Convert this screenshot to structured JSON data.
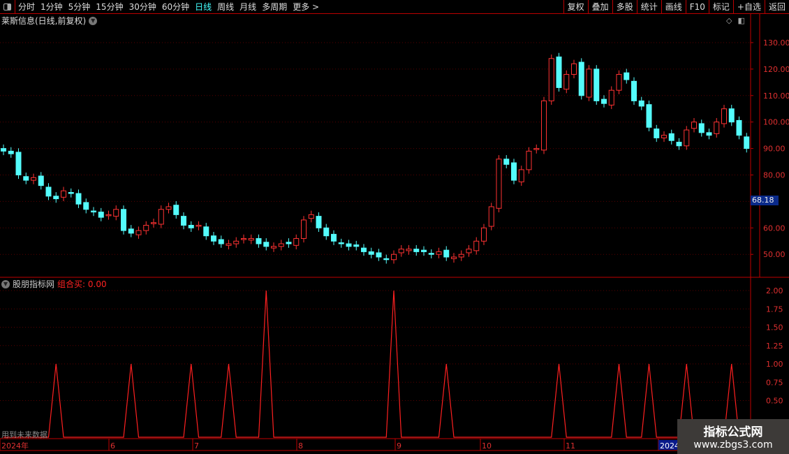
{
  "toolbar": {
    "periods": [
      "分时",
      "1分钟",
      "5分钟",
      "15分钟",
      "30分钟",
      "60分钟",
      "日线",
      "周线",
      "月线",
      "多周期",
      "更多 >"
    ],
    "active_period": "日线",
    "actions": [
      "复权",
      "叠加",
      "多股",
      "统计",
      "画线",
      "F10",
      "标记",
      "+自选",
      "返回"
    ]
  },
  "chart": {
    "title": "莱斯信息(日线,前复权)",
    "last_price_label": "68.18",
    "price_ticks": [
      130,
      120,
      110,
      100,
      90,
      80,
      70,
      60,
      50
    ],
    "colors": {
      "up": "#ff3232",
      "down": "#54fcfc",
      "axis": "#c00000",
      "background": "#000000"
    }
  },
  "indicator": {
    "name": "股朋指标网",
    "value_label": "组合买: 0.00",
    "ticks": [
      "2.00",
      "1.75",
      "1.50",
      "1.25",
      "1.00",
      "0.75",
      "0.50"
    ],
    "footer_note": "用到未来数据"
  },
  "time_axis": {
    "labels": [
      "2024年",
      "6",
      "7",
      "8",
      "9",
      "10",
      "11",
      "2024"
    ]
  },
  "watermark": {
    "line1": "指标公式网",
    "line2": "www.zbgs3.com"
  },
  "chart_data": {
    "type": "candlestick",
    "ylim": [
      44,
      136
    ],
    "close": [
      89,
      88,
      80,
      78,
      79,
      76,
      72,
      71,
      74,
      73,
      69,
      67,
      66,
      64,
      65,
      67,
      59,
      58,
      59,
      61,
      62,
      67,
      68,
      65,
      61,
      60,
      61,
      57,
      55,
      54,
      54,
      55,
      56,
      56,
      54,
      53,
      53,
      54,
      54,
      56,
      63,
      65,
      60,
      57,
      55,
      54,
      53,
      53,
      51,
      50,
      49,
      48,
      50,
      52,
      52,
      51,
      51,
      50,
      51,
      49,
      49,
      50,
      52,
      55,
      60,
      68,
      86,
      84,
      78,
      82,
      89,
      90,
      108,
      124,
      113,
      118,
      122,
      110,
      120,
      108,
      107,
      112,
      118,
      116,
      108,
      106,
      98,
      94,
      95,
      93,
      91,
      97,
      100,
      96,
      95,
      100,
      105,
      100,
      95,
      90
    ],
    "indicator_series": {
      "name": "组合买",
      "spikes": [
        [
          7,
          1
        ],
        [
          17,
          1
        ],
        [
          25,
          1
        ],
        [
          30,
          1
        ],
        [
          35,
          2
        ],
        [
          52,
          2
        ],
        [
          59,
          1
        ],
        [
          74,
          1
        ],
        [
          82,
          1
        ],
        [
          86,
          1
        ],
        [
          91,
          1
        ],
        [
          97,
          1
        ]
      ],
      "ylim": [
        0,
        2
      ]
    }
  }
}
